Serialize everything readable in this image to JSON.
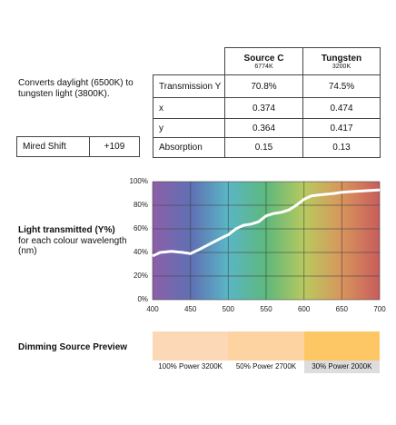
{
  "description": "Converts daylight (6500K) to tungsten light (3800K).",
  "mired_shift": {
    "label": "Mired Shift",
    "value": "+109"
  },
  "table": {
    "columns": [
      {
        "name": "Source C",
        "sub": "6774K"
      },
      {
        "name": "Tungsten",
        "sub": "3200K"
      }
    ],
    "rows": [
      [
        "Transmission Y",
        "70.8%",
        "74.5%"
      ],
      [
        "x",
        "0.374",
        "0.474"
      ],
      [
        "y",
        "0.364",
        "0.417"
      ],
      [
        "Absorption",
        "0.15",
        "0.13"
      ]
    ]
  },
  "chart_label": {
    "title": "Light transmitted (Y%)",
    "subtitle": "for each colour wavelength (nm)"
  },
  "chart_data": {
    "type": "line",
    "color": "#ffffff",
    "grid": true,
    "x": [
      400,
      410,
      425,
      440,
      450,
      460,
      475,
      490,
      500,
      510,
      520,
      530,
      540,
      550,
      560,
      570,
      580,
      590,
      600,
      610,
      625,
      640,
      650,
      675,
      700
    ],
    "values": [
      37,
      40,
      41,
      40,
      39,
      42,
      47,
      52,
      55,
      60,
      63,
      64,
      66,
      71,
      73,
      74,
      76,
      80,
      85,
      88,
      89,
      90,
      91,
      92,
      93
    ],
    "xlim": [
      400,
      700
    ],
    "xticks": [
      400,
      450,
      500,
      550,
      600,
      650,
      700
    ],
    "ylim": [
      0,
      100
    ],
    "yticks": [
      {
        "value": 0,
        "label": "0%"
      },
      {
        "value": 20,
        "label": "20%"
      },
      {
        "value": 40,
        "label": "40%"
      },
      {
        "value": 60,
        "label": "60%"
      },
      {
        "value": 80,
        "label": "80%"
      },
      {
        "value": 100,
        "label": "100%"
      }
    ]
  },
  "dimming": {
    "title": "Dimming Source Preview",
    "swatches": [
      {
        "label": "100% Power 3200K",
        "color": "#fcd8b6"
      },
      {
        "label": "50% Power 2700K",
        "color": "#fdd3a2"
      },
      {
        "label": "30% Power 2000K",
        "color": "#fec766"
      }
    ]
  }
}
